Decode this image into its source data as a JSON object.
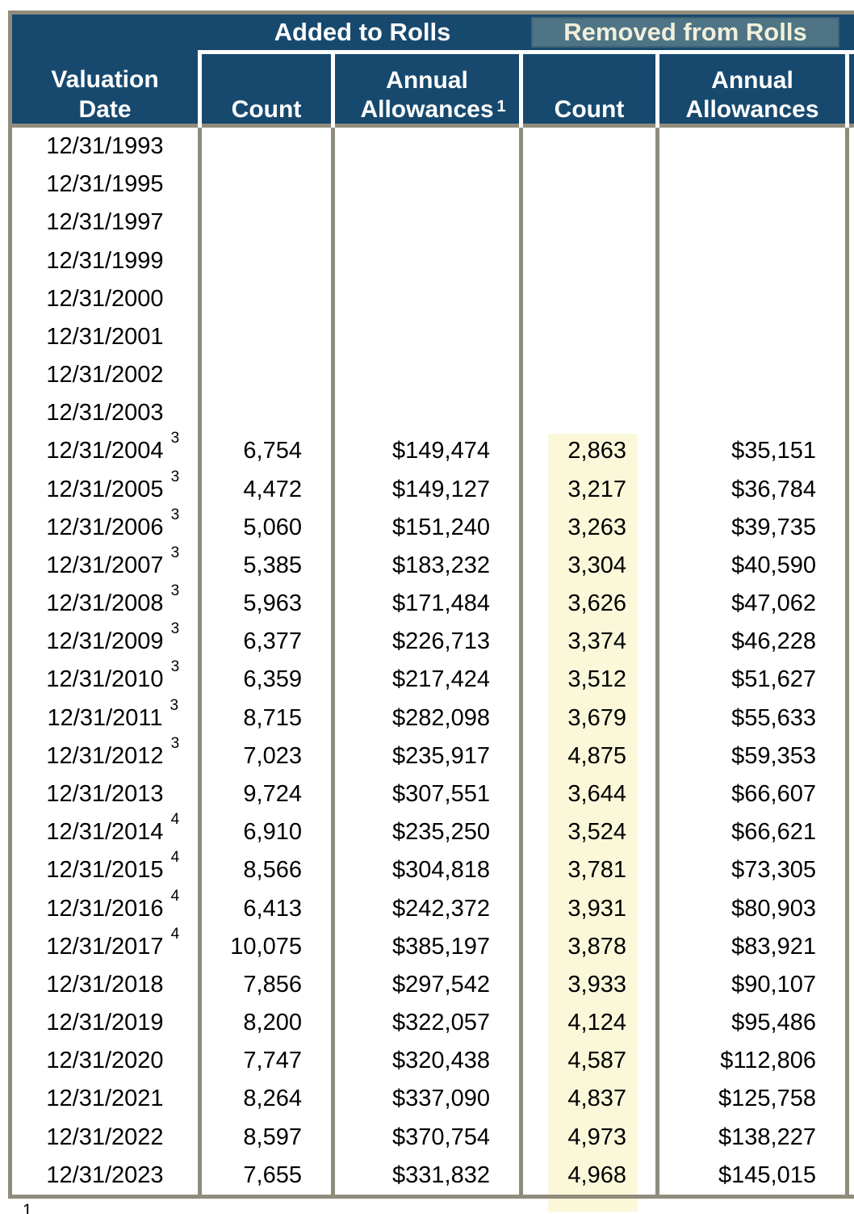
{
  "colors": {
    "header_navy": "#17496F",
    "removed_band_teal": "#4E7485",
    "removed_band_text": "#F1EFDB",
    "grid_border_tan": "#908C7C",
    "count_highlight_yellow": "#FAF8D9"
  },
  "header": {
    "group_added": "Added to Rolls",
    "group_removed": "Removed from Rolls",
    "col_valuation_line1": "Valuation",
    "col_valuation_line2": "Date",
    "col_added_count": "Count",
    "col_added_allow_line1": "Annual",
    "col_added_allow_line2": "Allowances",
    "col_added_allow_sup": "1",
    "col_removed_count": "Count",
    "col_removed_allow_line1": "Annual",
    "col_removed_allow_line2": "Allowances"
  },
  "footnote_marker": "1",
  "table": {
    "rows": [
      {
        "date": "12/31/1993",
        "sup": "",
        "added_count": "",
        "added_allowances": "",
        "removed_count": "",
        "removed_allowances": ""
      },
      {
        "date": "12/31/1995",
        "sup": "",
        "added_count": "",
        "added_allowances": "",
        "removed_count": "",
        "removed_allowances": ""
      },
      {
        "date": "12/31/1997",
        "sup": "",
        "added_count": "",
        "added_allowances": "",
        "removed_count": "",
        "removed_allowances": ""
      },
      {
        "date": "12/31/1999",
        "sup": "",
        "added_count": "",
        "added_allowances": "",
        "removed_count": "",
        "removed_allowances": ""
      },
      {
        "date": "12/31/2000",
        "sup": "",
        "added_count": "",
        "added_allowances": "",
        "removed_count": "",
        "removed_allowances": ""
      },
      {
        "date": "12/31/2001",
        "sup": "",
        "added_count": "",
        "added_allowances": "",
        "removed_count": "",
        "removed_allowances": ""
      },
      {
        "date": "12/31/2002",
        "sup": "",
        "added_count": "",
        "added_allowances": "",
        "removed_count": "",
        "removed_allowances": ""
      },
      {
        "date": "12/31/2003",
        "sup": "",
        "added_count": "",
        "added_allowances": "",
        "removed_count": "",
        "removed_allowances": ""
      },
      {
        "date": "12/31/2004",
        "sup": "3",
        "added_count": "6,754",
        "added_allowances": "$149,474",
        "removed_count": "2,863",
        "removed_allowances": "$35,151"
      },
      {
        "date": "12/31/2005",
        "sup": "3",
        "added_count": "4,472",
        "added_allowances": "$149,127",
        "removed_count": "3,217",
        "removed_allowances": "$36,784"
      },
      {
        "date": "12/31/2006",
        "sup": "3",
        "added_count": "5,060",
        "added_allowances": "$151,240",
        "removed_count": "3,263",
        "removed_allowances": "$39,735"
      },
      {
        "date": "12/31/2007",
        "sup": "3",
        "added_count": "5,385",
        "added_allowances": "$183,232",
        "removed_count": "3,304",
        "removed_allowances": "$40,590"
      },
      {
        "date": "12/31/2008",
        "sup": "3",
        "added_count": "5,963",
        "added_allowances": "$171,484",
        "removed_count": "3,626",
        "removed_allowances": "$47,062"
      },
      {
        "date": "12/31/2009",
        "sup": "3",
        "added_count": "6,377",
        "added_allowances": "$226,713",
        "removed_count": "3,374",
        "removed_allowances": "$46,228"
      },
      {
        "date": "12/31/2010",
        "sup": "3",
        "added_count": "6,359",
        "added_allowances": "$217,424",
        "removed_count": "3,512",
        "removed_allowances": "$51,627"
      },
      {
        "date": "12/31/2011",
        "sup": "3",
        "added_count": "8,715",
        "added_allowances": "$282,098",
        "removed_count": "3,679",
        "removed_allowances": "$55,633"
      },
      {
        "date": "12/31/2012",
        "sup": "3",
        "added_count": "7,023",
        "added_allowances": "$235,917",
        "removed_count": "4,875",
        "removed_allowances": "$59,353"
      },
      {
        "date": "12/31/2013",
        "sup": "",
        "added_count": "9,724",
        "added_allowances": "$307,551",
        "removed_count": "3,644",
        "removed_allowances": "$66,607"
      },
      {
        "date": "12/31/2014",
        "sup": "4",
        "added_count": "6,910",
        "added_allowances": "$235,250",
        "removed_count": "3,524",
        "removed_allowances": "$66,621"
      },
      {
        "date": "12/31/2015",
        "sup": "4",
        "added_count": "8,566",
        "added_allowances": "$304,818",
        "removed_count": "3,781",
        "removed_allowances": "$73,305"
      },
      {
        "date": "12/31/2016",
        "sup": "4",
        "added_count": "6,413",
        "added_allowances": "$242,372",
        "removed_count": "3,931",
        "removed_allowances": "$80,903"
      },
      {
        "date": "12/31/2017",
        "sup": "4",
        "added_count": "10,075",
        "added_allowances": "$385,197",
        "removed_count": "3,878",
        "removed_allowances": "$83,921"
      },
      {
        "date": "12/31/2018",
        "sup": "",
        "added_count": "7,856",
        "added_allowances": "$297,542",
        "removed_count": "3,933",
        "removed_allowances": "$90,107"
      },
      {
        "date": "12/31/2019",
        "sup": "",
        "added_count": "8,200",
        "added_allowances": "$322,057",
        "removed_count": "4,124",
        "removed_allowances": "$95,486"
      },
      {
        "date": "12/31/2020",
        "sup": "",
        "added_count": "7,747",
        "added_allowances": "$320,438",
        "removed_count": "4,587",
        "removed_allowances": "$112,806"
      },
      {
        "date": "12/31/2021",
        "sup": "",
        "added_count": "8,264",
        "added_allowances": "$337,090",
        "removed_count": "4,837",
        "removed_allowances": "$125,758"
      },
      {
        "date": "12/31/2022",
        "sup": "",
        "added_count": "8,597",
        "added_allowances": "$370,754",
        "removed_count": "4,973",
        "removed_allowances": "$138,227"
      },
      {
        "date": "12/31/2023",
        "sup": "",
        "added_count": "7,655",
        "added_allowances": "$331,832",
        "removed_count": "4,968",
        "removed_allowances": "$145,015"
      }
    ]
  }
}
